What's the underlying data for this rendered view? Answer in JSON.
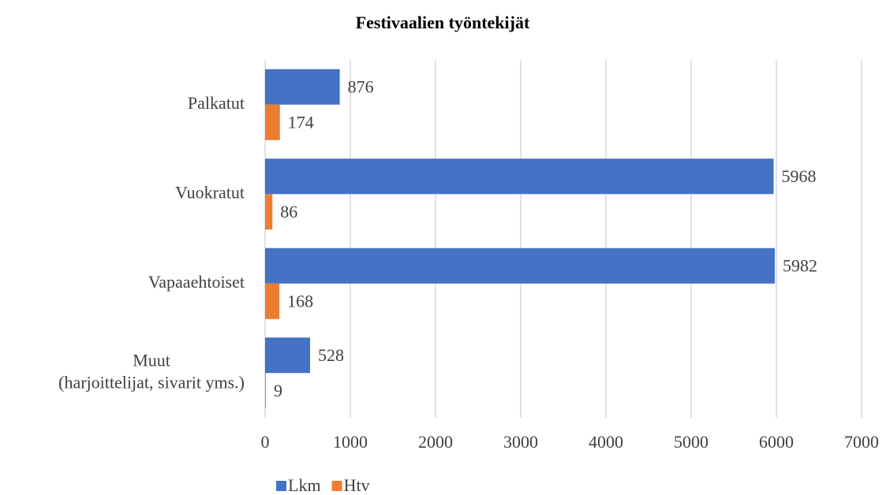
{
  "chart_data": {
    "type": "hbar",
    "title": "Festivaalien työntekijät",
    "categories": [
      "Palkatut",
      "Vuokratut",
      "Vapaaehtoiset",
      "Muut (harjoittelijat, sivarit yms.)"
    ],
    "series": [
      {
        "name": "Lkm",
        "color": "#4472c4",
        "values": [
          876,
          5968,
          5982,
          528
        ]
      },
      {
        "name": "Htv",
        "color": "#ed7d31",
        "values": [
          174,
          86,
          168,
          9
        ]
      }
    ],
    "xlim": [
      0,
      7000
    ],
    "xticks": [
      0,
      1000,
      2000,
      3000,
      4000,
      5000,
      6000,
      7000
    ],
    "grid": true,
    "legend": "bottom"
  }
}
